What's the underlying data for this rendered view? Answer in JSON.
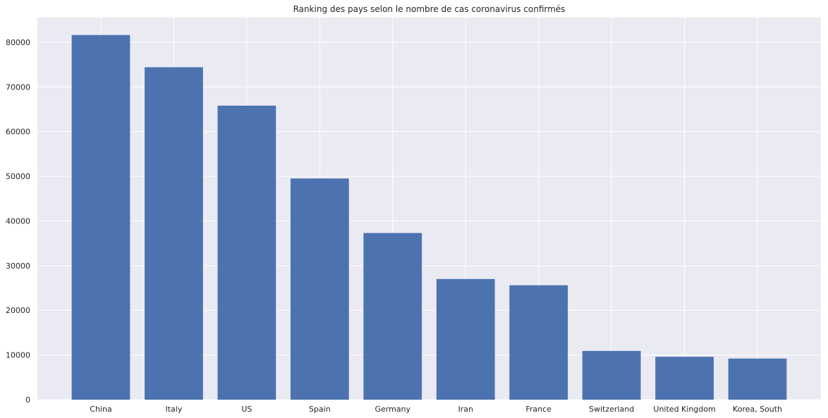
{
  "chart_data": {
    "type": "bar",
    "title": "Ranking des pays selon le nombre de cas coronavirus confirmés",
    "xlabel": "",
    "ylabel": "",
    "categories": [
      "China",
      "Italy",
      "US",
      "Spain",
      "Germany",
      "Iran",
      "France",
      "Switzerland",
      "United Kingdom",
      "Korea, South"
    ],
    "values": [
      81600,
      74400,
      65800,
      49500,
      37300,
      27000,
      25600,
      10900,
      9600,
      9200
    ],
    "ylim": [
      0,
      85500
    ],
    "yticks": [
      0,
      10000,
      20000,
      30000,
      40000,
      50000,
      60000,
      70000,
      80000
    ],
    "ytick_labels": [
      "0",
      "10000",
      "20000",
      "30000",
      "40000",
      "50000",
      "60000",
      "70000",
      "80000"
    ],
    "grid": true,
    "legend": "none",
    "colors": {
      "bar": "#4c72b0",
      "plot_background": "#eaeaf2",
      "grid": "#ffffff",
      "text": "#262626"
    }
  }
}
